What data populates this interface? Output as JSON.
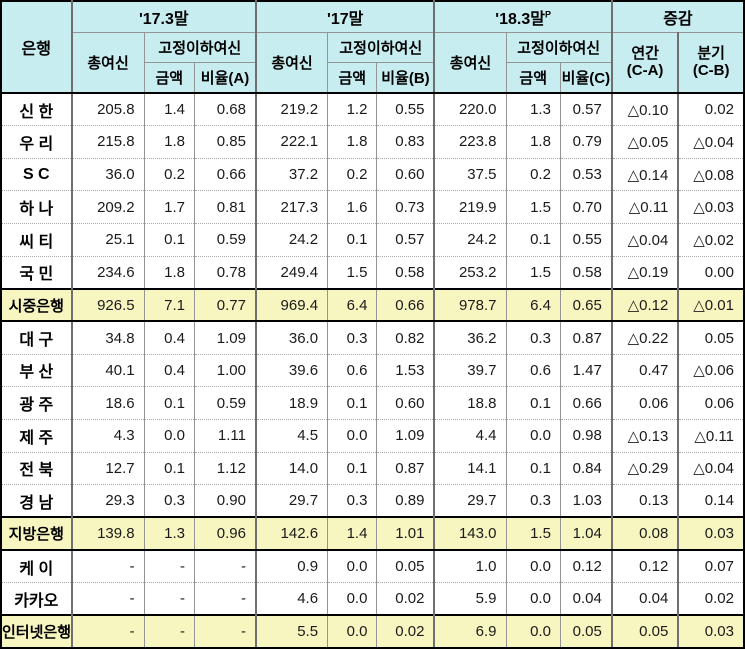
{
  "table": {
    "header": {
      "bank": "은행",
      "groups": [
        {
          "label": "'17.3말",
          "sup": ""
        },
        {
          "label": "'17말",
          "sup": ""
        },
        {
          "label": "'18.3말",
          "sup": "P"
        }
      ],
      "total_loans": "총여신",
      "substandard": "고정이하여신",
      "amount": "금액",
      "ratios": [
        "비율(A)",
        "비율(B)",
        "비율(C)"
      ],
      "change": "증감",
      "annual": "연간",
      "annual_sub": "(C-A)",
      "quarter": "분기",
      "quarter_sub": "(C-B)"
    },
    "rows": [
      {
        "bank": "신 한",
        "type": "normal",
        "values": [
          "205.8",
          "1.4",
          "0.68",
          "219.2",
          "1.2",
          "0.55",
          "220.0",
          "1.3",
          "0.57",
          "△0.10",
          "0.02"
        ]
      },
      {
        "bank": "우 리",
        "type": "normal",
        "values": [
          "215.8",
          "1.8",
          "0.85",
          "222.1",
          "1.8",
          "0.83",
          "223.8",
          "1.8",
          "0.79",
          "△0.05",
          "△0.04"
        ]
      },
      {
        "bank": "S C",
        "type": "normal",
        "values": [
          "36.0",
          "0.2",
          "0.66",
          "37.2",
          "0.2",
          "0.60",
          "37.5",
          "0.2",
          "0.53",
          "△0.14",
          "△0.08"
        ]
      },
      {
        "bank": "하 나",
        "type": "normal",
        "values": [
          "209.2",
          "1.7",
          "0.81",
          "217.3",
          "1.6",
          "0.73",
          "219.9",
          "1.5",
          "0.70",
          "△0.11",
          "△0.03"
        ]
      },
      {
        "bank": "씨 티",
        "type": "normal",
        "values": [
          "25.1",
          "0.1",
          "0.59",
          "24.2",
          "0.1",
          "0.57",
          "24.2",
          "0.1",
          "0.55",
          "△0.04",
          "△0.02"
        ]
      },
      {
        "bank": "국 민",
        "type": "normal",
        "values": [
          "234.6",
          "1.8",
          "0.78",
          "249.4",
          "1.5",
          "0.58",
          "253.2",
          "1.5",
          "0.58",
          "△0.19",
          "0.00"
        ]
      },
      {
        "bank": "시중은행",
        "type": "summary",
        "values": [
          "926.5",
          "7.1",
          "0.77",
          "969.4",
          "6.4",
          "0.66",
          "978.7",
          "6.4",
          "0.65",
          "△0.12",
          "△0.01"
        ]
      },
      {
        "bank": "대 구",
        "type": "normal",
        "values": [
          "34.8",
          "0.4",
          "1.09",
          "36.0",
          "0.3",
          "0.82",
          "36.2",
          "0.3",
          "0.87",
          "△0.22",
          "0.05"
        ]
      },
      {
        "bank": "부 산",
        "type": "normal",
        "values": [
          "40.1",
          "0.4",
          "1.00",
          "39.6",
          "0.6",
          "1.53",
          "39.7",
          "0.6",
          "1.47",
          "0.47",
          "△0.06"
        ]
      },
      {
        "bank": "광 주",
        "type": "normal",
        "values": [
          "18.6",
          "0.1",
          "0.59",
          "18.9",
          "0.1",
          "0.60",
          "18.8",
          "0.1",
          "0.66",
          "0.06",
          "0.06"
        ]
      },
      {
        "bank": "제 주",
        "type": "normal",
        "values": [
          "4.3",
          "0.0",
          "1.11",
          "4.5",
          "0.0",
          "1.09",
          "4.4",
          "0.0",
          "0.98",
          "△0.13",
          "△0.11"
        ]
      },
      {
        "bank": "전 북",
        "type": "normal",
        "values": [
          "12.7",
          "0.1",
          "1.12",
          "14.0",
          "0.1",
          "0.87",
          "14.1",
          "0.1",
          "0.84",
          "△0.29",
          "△0.04"
        ]
      },
      {
        "bank": "경 남",
        "type": "normal",
        "values": [
          "29.3",
          "0.3",
          "0.90",
          "29.7",
          "0.3",
          "0.89",
          "29.7",
          "0.3",
          "1.03",
          "0.13",
          "0.14"
        ]
      },
      {
        "bank": "지방은행",
        "type": "summary",
        "values": [
          "139.8",
          "1.3",
          "0.96",
          "142.6",
          "1.4",
          "1.01",
          "143.0",
          "1.5",
          "1.04",
          "0.08",
          "0.03"
        ]
      },
      {
        "bank": "케 이",
        "type": "normal",
        "values": [
          "-",
          "-",
          "-",
          "0.9",
          "0.0",
          "0.05",
          "1.0",
          "0.0",
          "0.12",
          "0.12",
          "0.07"
        ]
      },
      {
        "bank": "카카오",
        "type": "normal",
        "values": [
          "-",
          "-",
          "-",
          "4.6",
          "0.0",
          "0.02",
          "5.9",
          "0.0",
          "0.04",
          "0.04",
          "0.02"
        ]
      },
      {
        "bank": "인터넷은행",
        "type": "summary",
        "values": [
          "-",
          "-",
          "-",
          "5.5",
          "0.0",
          "0.02",
          "6.9",
          "0.0",
          "0.05",
          "0.05",
          "0.03"
        ]
      }
    ]
  },
  "colors": {
    "header_bg": "#c7edf1",
    "summary_bg": "#f8f6c0",
    "grid": "#949494",
    "grid_strong": "#6f6f6f",
    "frame": "#000000"
  }
}
